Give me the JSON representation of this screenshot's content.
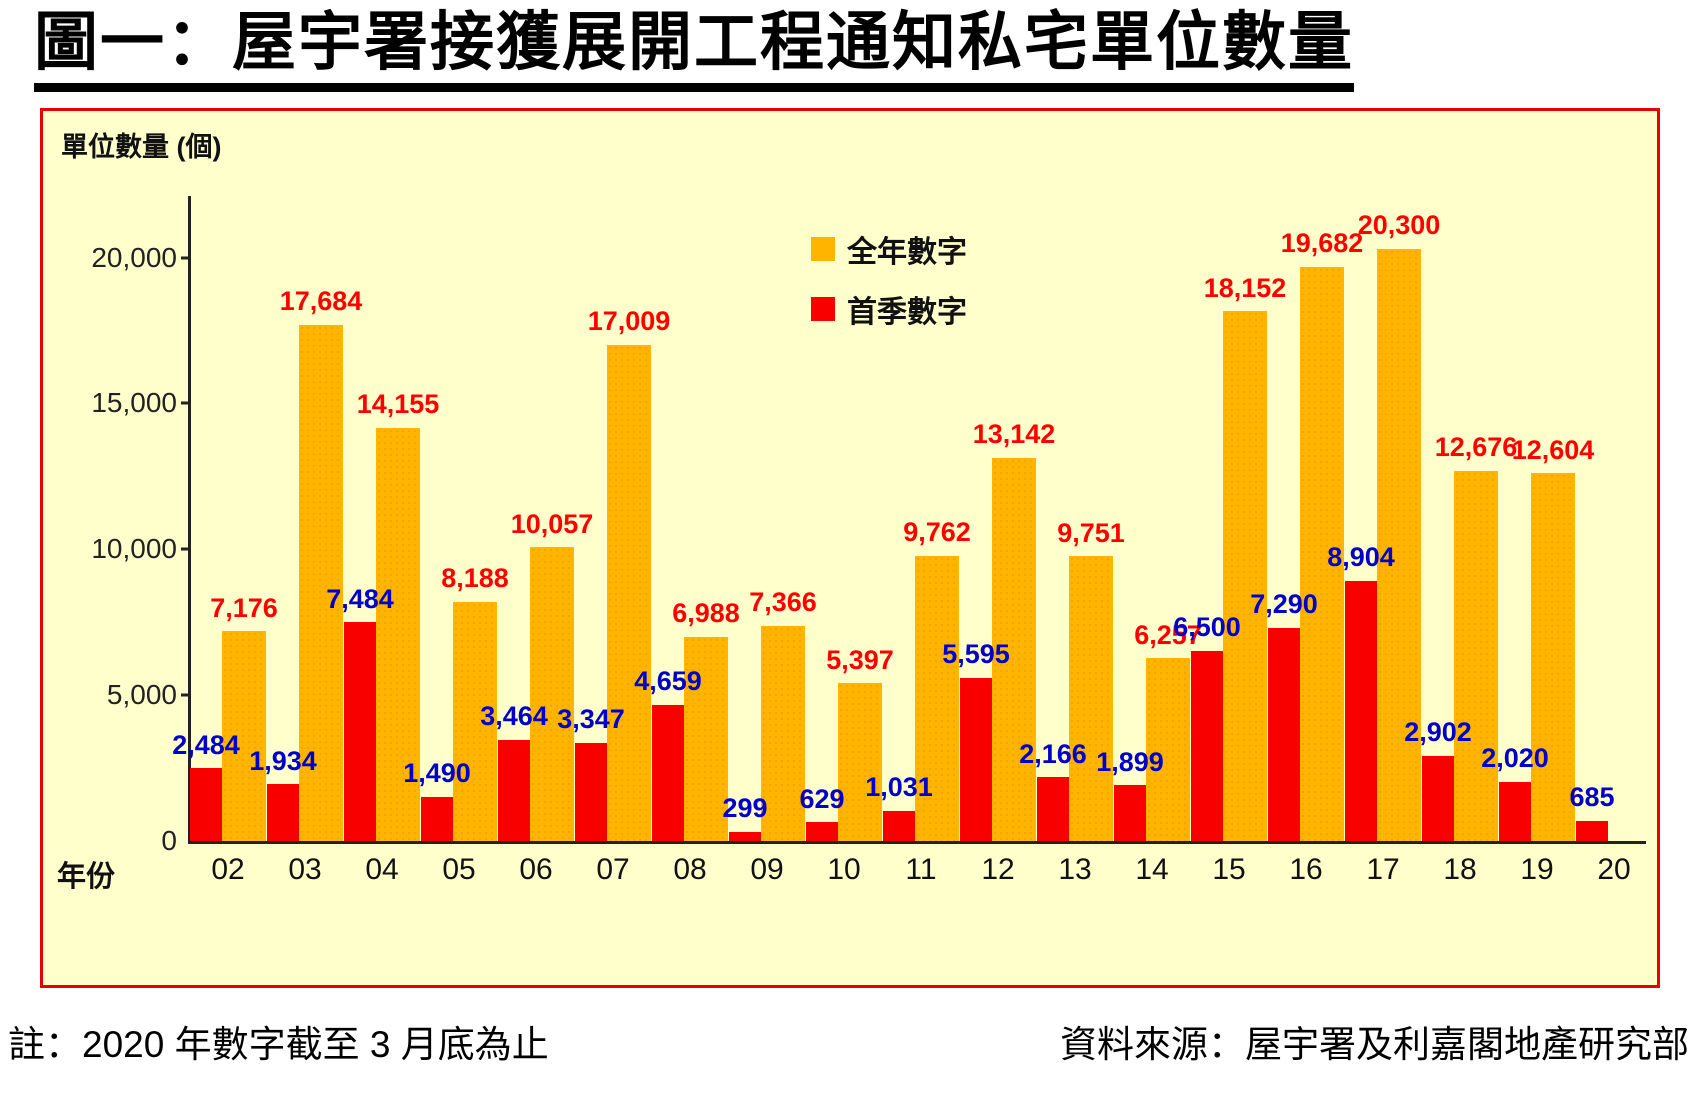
{
  "title": "圖一：屋宇署接獲展開工程通知私宅單位數量",
  "colors": {
    "chart_bg": "#FFFFCC",
    "chart_border": "#E60000",
    "full_year_bar": "#FFB400",
    "first_quarter_bar": "#F80000",
    "full_year_label": "#FF0000",
    "first_quarter_label": "#0000CC"
  },
  "chart_data": {
    "type": "bar",
    "title": "圖一：屋宇署接獲展開工程通知私宅單位數量",
    "ylabel": "單位數量 (個)",
    "xlabel": "年份",
    "ylim": [
      0,
      22000
    ],
    "yticks": [
      0,
      5000,
      10000,
      15000,
      20000
    ],
    "ytick_labels": [
      "0",
      "5,000",
      "10,000",
      "15,000",
      "20,000"
    ],
    "grid": false,
    "legend_position": "top-center",
    "categories": [
      "02",
      "03",
      "04",
      "05",
      "06",
      "07",
      "08",
      "09",
      "10",
      "11",
      "12",
      "13",
      "14",
      "15",
      "16",
      "17",
      "18",
      "19",
      "20"
    ],
    "series": [
      {
        "name": "全年數字",
        "color": "#FFB400",
        "label_color": "#FF0000",
        "values": [
          7176,
          17684,
          14155,
          8188,
          10057,
          17009,
          6988,
          7366,
          5397,
          9762,
          13142,
          9751,
          6257,
          18152,
          19682,
          20300,
          12676,
          12604,
          null
        ]
      },
      {
        "name": "首季數字",
        "color": "#F80000",
        "label_color": "#0000CC",
        "values": [
          2484,
          1934,
          7484,
          1490,
          3464,
          3347,
          4659,
          299,
          629,
          1031,
          5595,
          2166,
          1899,
          6500,
          7290,
          8904,
          2902,
          2020,
          685
        ]
      }
    ]
  },
  "footer": {
    "note": "註：2020 年數字截至 3 月底為止",
    "source": "資料來源：屋宇署及利嘉閣地產研究部"
  }
}
